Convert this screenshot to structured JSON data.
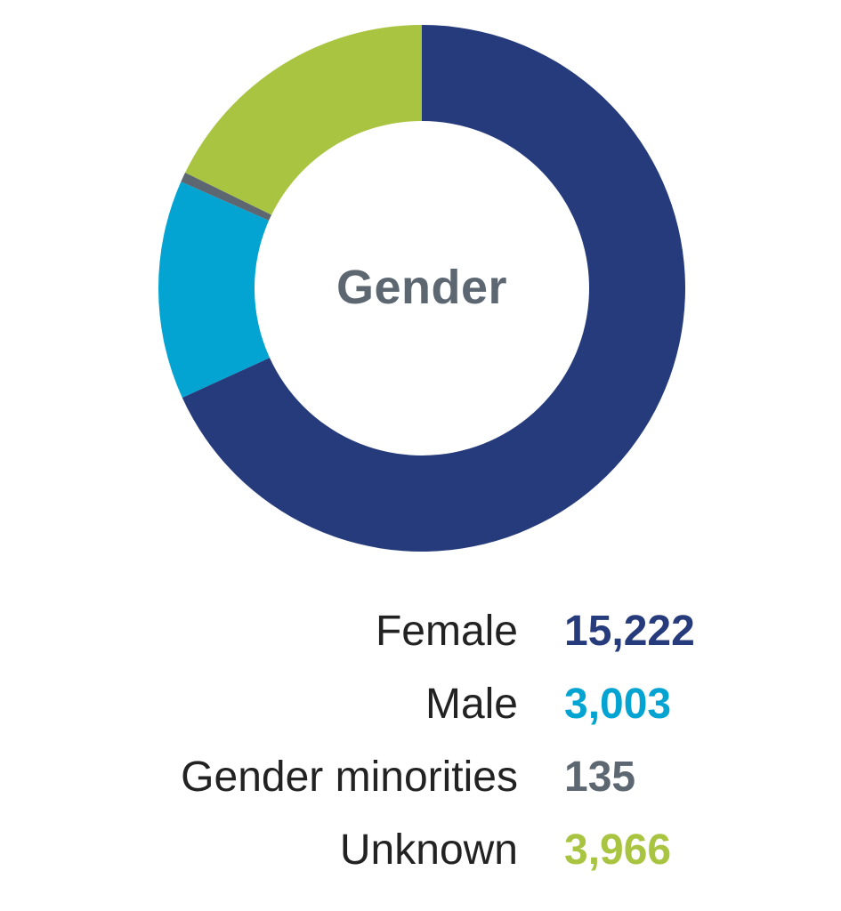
{
  "chart_data": {
    "type": "pie",
    "title": "Gender",
    "donut": true,
    "categories": [
      "Female",
      "Male",
      "Gender minorities",
      "Unknown"
    ],
    "values": [
      15222,
      3003,
      135,
      3966
    ],
    "value_labels": [
      "15,222",
      "3,003",
      "135",
      "3,966"
    ],
    "colors": [
      "#263b7b",
      "#03a4d2",
      "#5d6772",
      "#a9c441"
    ],
    "legend_position": "bottom",
    "start_angle_deg": 0,
    "direction": "clockwise"
  }
}
